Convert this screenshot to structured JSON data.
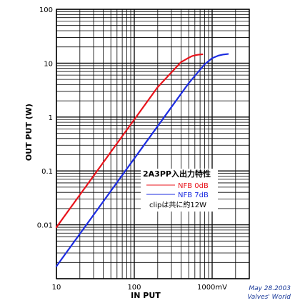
{
  "chart_data": {
    "type": "line",
    "title": "2A3PP入出力特性",
    "xlabel": "IN PUT",
    "ylabel": "OUT PUT (W)",
    "xscale": "log",
    "yscale": "log",
    "xlim": [
      10,
      3000
    ],
    "ylim": [
      0.001,
      100
    ],
    "grid": true,
    "x_tick_labels": [
      "10",
      "100",
      "1000mV"
    ],
    "y_tick_labels": [
      "100",
      "10",
      "1",
      "0.1",
      "0.01"
    ],
    "legend_placement": "center-right",
    "series": [
      {
        "name": "NFB 0dB",
        "color": "#e8141c",
        "x": [
          10,
          20,
          50,
          100,
          200,
          400,
          500,
          550,
          600,
          650,
          700,
          750
        ],
        "y": [
          0.009,
          0.036,
          0.225,
          0.9,
          3.6,
          10.5,
          12.6,
          13.5,
          14.0,
          14.3,
          14.5,
          14.6
        ]
      },
      {
        "name": "NFB 7dB",
        "color": "#1c2ce0",
        "x": [
          10,
          20,
          50,
          100,
          200,
          500,
          800,
          1000,
          1200,
          1400,
          1600
        ],
        "y": [
          0.0017,
          0.0068,
          0.0425,
          0.17,
          0.68,
          4.25,
          9.5,
          12.4,
          13.8,
          14.5,
          14.8
        ]
      }
    ],
    "annotations": [
      "clipは共に約12W"
    ]
  },
  "credit": {
    "date": "May 28.2003",
    "site": "Valves' World"
  }
}
